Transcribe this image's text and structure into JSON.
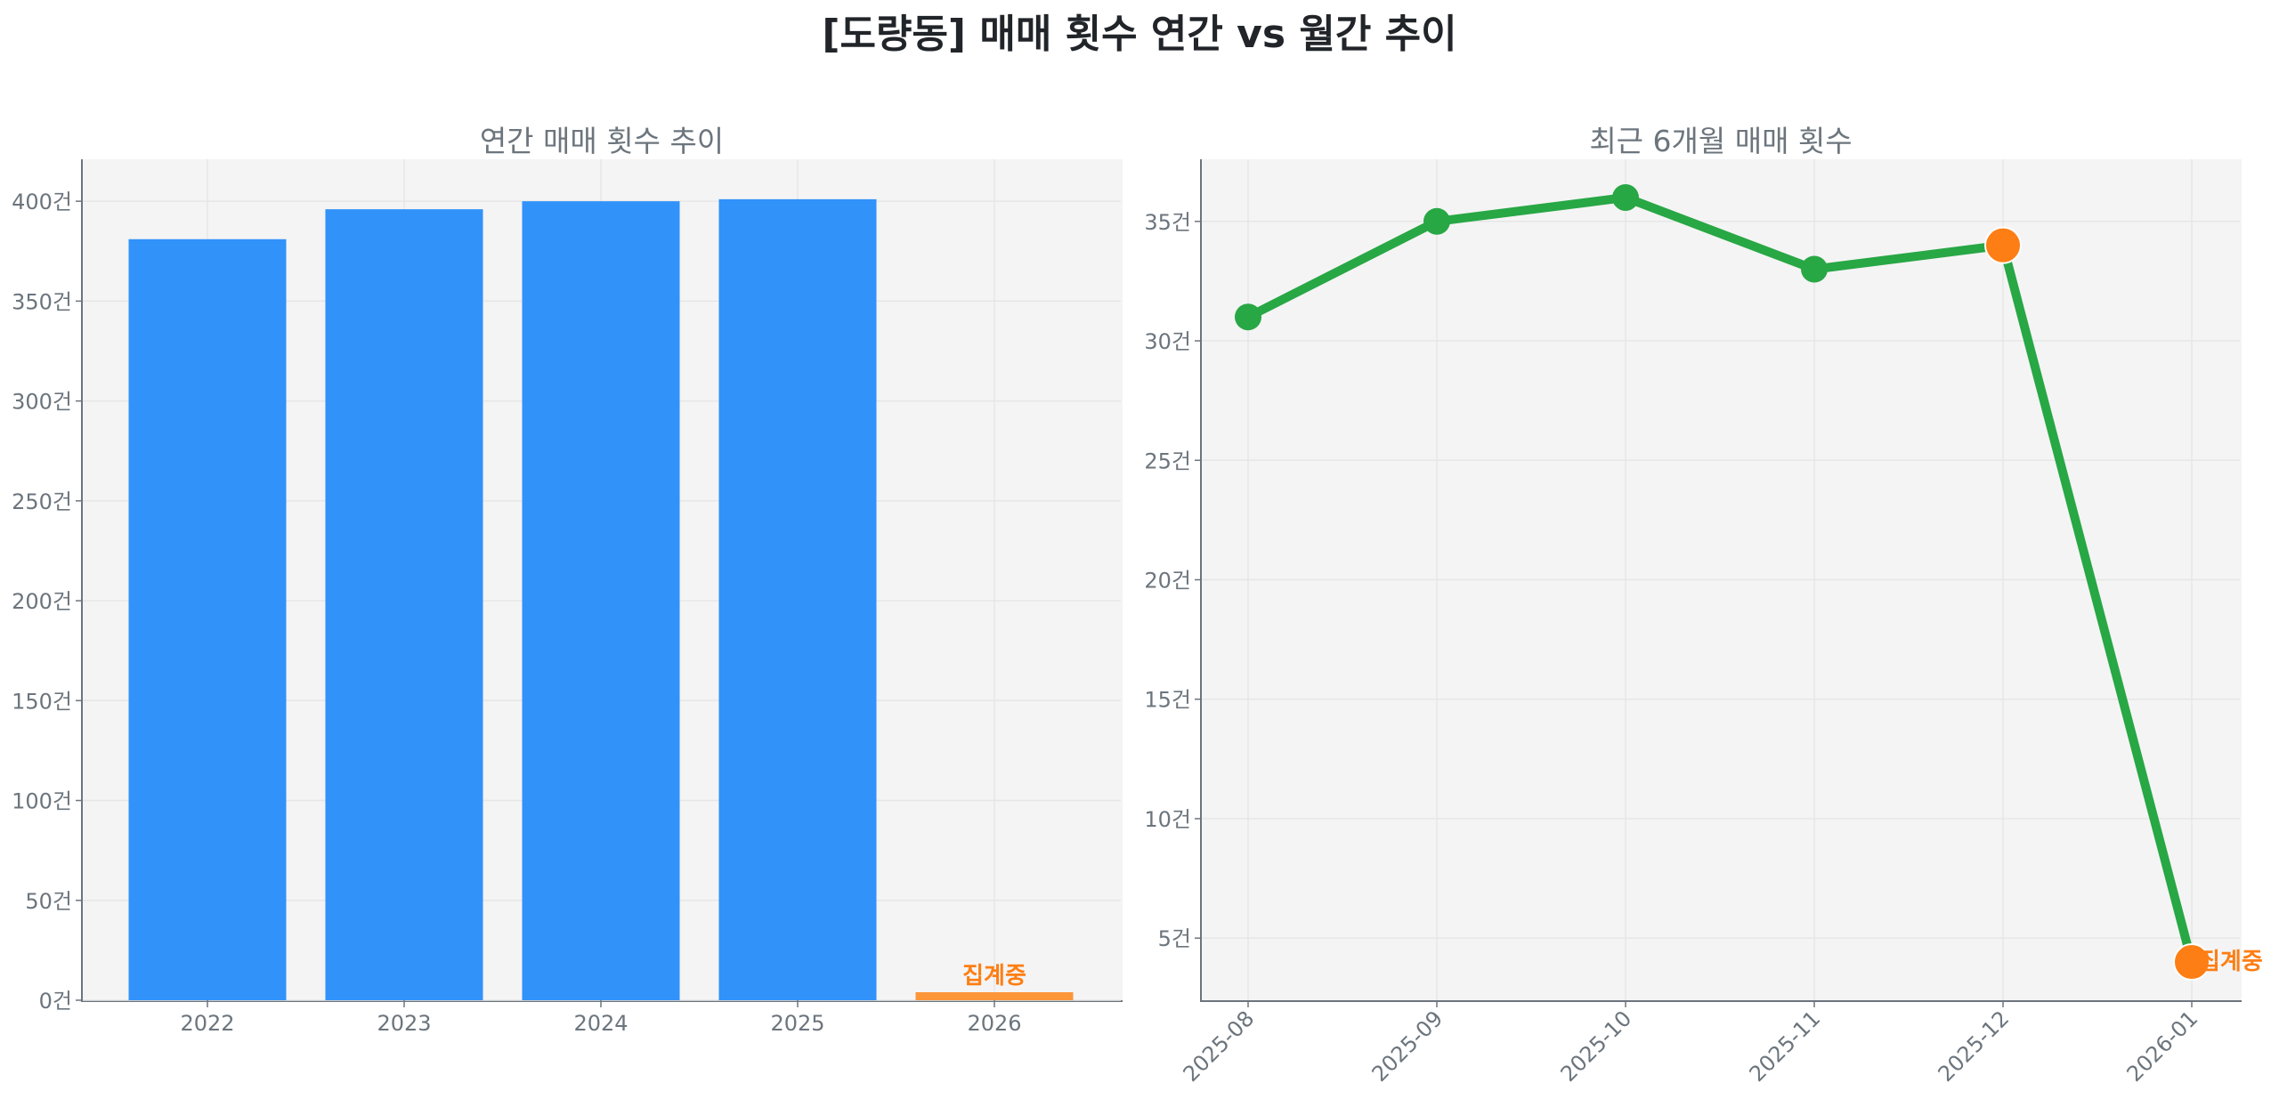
{
  "figure": {
    "title": "[도량동] 매매 횟수 연간 vs 월간 추이",
    "in_progress_label": "집계중",
    "colors": {
      "bar": "#3192fa",
      "bar_partial": "#fd9539",
      "line": "#28a745",
      "highlight": "#fd7e14",
      "text": "#6c757d",
      "grid": "#e6e6e6",
      "background": "#f4f4f4"
    }
  },
  "chart_data": [
    {
      "type": "bar",
      "title": "연간 매매 횟수 추이",
      "categories": [
        "2022",
        "2023",
        "2024",
        "2025",
        "2026"
      ],
      "values": [
        381,
        396,
        400,
        401,
        4
      ],
      "annotations": [
        {
          "category": "2026",
          "text": "집계중"
        }
      ],
      "xlabel": "",
      "ylabel": "",
      "yticks": [
        "0건",
        "50건",
        "100건",
        "150건",
        "200건",
        "250건",
        "300건",
        "350건",
        "400건"
      ],
      "ylim": [
        0,
        421
      ],
      "grid": true
    },
    {
      "type": "line",
      "title": "최근 6개월 매매 횟수",
      "x": [
        "2025-08",
        "2025-09",
        "2025-10",
        "2025-11",
        "2025-12",
        "2026-01"
      ],
      "values": [
        31,
        35,
        36,
        33,
        34,
        4
      ],
      "highlight_points": [
        "2025-12",
        "2026-01"
      ],
      "annotations": [
        {
          "x": "2026-01",
          "text": "집계중"
        }
      ],
      "xlabel": "",
      "ylabel": "",
      "yticks": [
        "5건",
        "10건",
        "15건",
        "20건",
        "25건",
        "30건",
        "35건"
      ],
      "ylim": [
        2.4,
        37.6
      ],
      "grid": true
    }
  ]
}
